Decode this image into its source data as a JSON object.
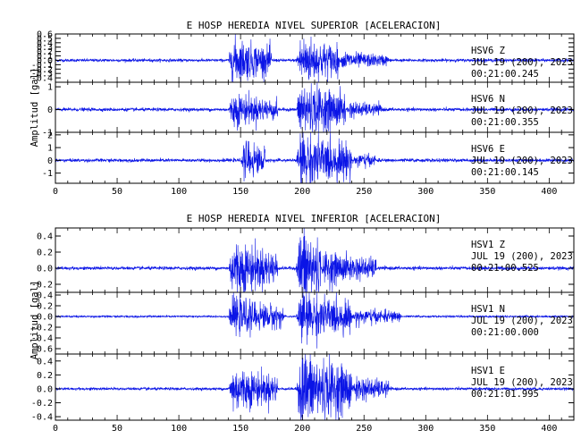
{
  "chart_data": [
    {
      "type": "line",
      "title": "E HOSP HEREDIA NIVEL SUPERIOR [ACELERACION]",
      "ylabel": "Amplitud [gal]",
      "xlabel": "",
      "xlim": [
        0,
        420
      ],
      "xticks": [
        "0",
        "50",
        "100",
        "150",
        "200",
        "250",
        "300",
        "350",
        "400"
      ],
      "grid": false,
      "color": "#0a14e6",
      "traces": [
        {
          "component": "Z",
          "annotation": [
            "HSV6   Z",
            "JUL 19 (200), 2023",
            "00:21:00.245"
          ],
          "ylim": [
            -0.5,
            0.6
          ],
          "yticks": [
            "0.6",
            "0.5",
            "0.4",
            "0.3",
            "0.2",
            "0.1",
            "0.0",
            "-0.1",
            "-0.2",
            "-0.3",
            "-0.4"
          ],
          "amplitude": 0.45,
          "noise": 0.05,
          "bursts": [
            [
              140,
              175,
              0.9
            ],
            [
              195,
              230,
              1.0
            ],
            [
              230,
              270,
              0.35
            ]
          ]
        },
        {
          "component": "N",
          "annotation": [
            "HSV6   N",
            "JUL 19 (200), 2023",
            "00:21:00.355"
          ],
          "ylim": [
            -1,
            1.2
          ],
          "yticks": [
            "1",
            "0",
            "-1"
          ],
          "amplitude": 0.95,
          "noise": 0.05,
          "bursts": [
            [
              140,
              180,
              0.6
            ],
            [
              195,
              235,
              1.0
            ],
            [
              235,
              265,
              0.3
            ]
          ]
        },
        {
          "component": "E",
          "annotation": [
            "HSV6   E",
            "JUL 19 (200), 2023",
            "00:21:00.145"
          ],
          "ylim": [
            -1.8,
            2.2
          ],
          "yticks": [
            "2",
            "1",
            "0",
            "-1"
          ],
          "amplitude": 1.7,
          "noise": 0.05,
          "bursts": [
            [
              150,
              170,
              0.75
            ],
            [
              195,
              240,
              1.0
            ],
            [
              240,
              260,
              0.3
            ]
          ]
        }
      ]
    },
    {
      "type": "line",
      "title": "E HOSP HEREDIA NIVEL INFERIOR [ACELERACION]",
      "ylabel": "Amplitud [gal]",
      "xlabel": "",
      "xlim": [
        0,
        420
      ],
      "xticks": [
        "0",
        "50",
        "100",
        "150",
        "200",
        "250",
        "300",
        "350",
        "400"
      ],
      "grid": false,
      "color": "#0a14e6",
      "traces": [
        {
          "component": "Z",
          "annotation": [
            "HSV1   Z",
            "JUL 19 (200), 2023",
            "00:21:00.525"
          ],
          "ylim": [
            -0.3,
            0.5
          ],
          "yticks": [
            "0.4",
            "0.2",
            "0.0",
            "-0.2"
          ],
          "amplitude": 0.45,
          "noise": 0.03,
          "bursts": [
            [
              140,
              180,
              0.6
            ],
            [
              195,
              215,
              1.0
            ],
            [
              215,
              260,
              0.35
            ]
          ]
        },
        {
          "component": "N",
          "annotation": [
            "HSV1   N",
            "JUL 19 (200), 2023",
            "00:21:00.000"
          ],
          "ylim": [
            -0.7,
            0.45
          ],
          "yticks": [
            "0.4",
            "0.2",
            "0.0",
            "-0.2",
            "-0.4",
            "-0.6"
          ],
          "amplitude": 0.4,
          "noise": 0.03,
          "bursts": [
            [
              140,
              185,
              0.65
            ],
            [
              195,
              240,
              0.9
            ],
            [
              240,
              280,
              0.3
            ]
          ]
        },
        {
          "component": "E",
          "annotation": [
            "HSV1   E",
            "JUL 19 (200), 2023",
            "00:21:01.995"
          ],
          "ylim": [
            -0.45,
            0.5
          ],
          "yticks": [
            "0.4",
            "0.2",
            "0.0",
            "-0.2",
            "-0.4"
          ],
          "amplitude": 0.42,
          "noise": 0.03,
          "bursts": [
            [
              140,
              180,
              0.6
            ],
            [
              195,
              240,
              1.0
            ],
            [
              240,
              270,
              0.35
            ]
          ]
        }
      ]
    }
  ]
}
